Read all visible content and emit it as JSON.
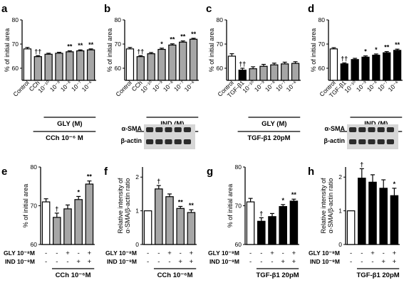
{
  "chart_data": [
    {
      "panel": "a",
      "type": "bar",
      "ylabel": "% of initial area",
      "ylim": [
        55,
        80
      ],
      "yticks": [
        60,
        70,
        80
      ],
      "categories": [
        "Control",
        "CCh",
        "10⁻¹⁰",
        "10⁻⁹",
        "10⁻⁸",
        "10⁻⁷",
        "10⁻⁶"
      ],
      "values": [
        68,
        64.8,
        65.8,
        66.2,
        66.8,
        67.2,
        67.6
      ],
      "errors": [
        0.6,
        0.4,
        0.4,
        0.4,
        0.4,
        0.4,
        0.4
      ],
      "colors": [
        "white",
        "gray",
        "gray",
        "gray",
        "gray",
        "gray",
        "gray"
      ],
      "annotations": [
        "",
        "††",
        "",
        "",
        "**",
        "**",
        "**"
      ],
      "groups": [
        {
          "label": "GLY (M)",
          "from": 2,
          "to": 6
        },
        {
          "label": "CCh 10⁻⁶ M",
          "from": 1,
          "to": 6
        }
      ]
    },
    {
      "panel": "b",
      "type": "bar",
      "ylabel": "% of initial area",
      "ylim": [
        55,
        80
      ],
      "yticks": [
        60,
        70,
        80
      ],
      "categories": [
        "Control",
        "CCh",
        "10⁻¹⁰",
        "10⁻⁹",
        "10⁻⁸",
        "10⁻⁷",
        "10⁻⁶"
      ],
      "values": [
        68,
        64.8,
        66,
        67.8,
        69.6,
        70.8,
        72
      ],
      "errors": [
        0.6,
        0.4,
        0.5,
        0.5,
        0.5,
        0.5,
        0.4
      ],
      "colors": [
        "white",
        "gray",
        "gray",
        "gray",
        "gray",
        "gray",
        "gray"
      ],
      "annotations": [
        "",
        "††",
        "",
        "*",
        "**",
        "**",
        "**"
      ],
      "groups": [
        {
          "label": "IND (M)",
          "from": 2,
          "to": 6
        },
        {
          "label": "CCh 10⁻⁶ M",
          "from": 1,
          "to": 6
        }
      ]
    },
    {
      "panel": "c",
      "type": "bar",
      "ylabel": "% of initial area",
      "ylim": [
        55,
        80
      ],
      "yticks": [
        60,
        70,
        80
      ],
      "categories": [
        "Control",
        "TGF-β1",
        "10⁻¹⁰",
        "10⁻⁹",
        "10⁻⁸",
        "10⁻⁷",
        "10⁻⁶"
      ],
      "values": [
        65,
        59.2,
        59.8,
        60.8,
        61.4,
        61.8,
        62
      ],
      "errors": [
        1.0,
        0.8,
        0.8,
        0.8,
        0.7,
        0.7,
        0.7
      ],
      "colors": [
        "white",
        "black",
        "gray",
        "gray",
        "gray",
        "gray",
        "gray"
      ],
      "annotations": [
        "",
        "††",
        "",
        "",
        "",
        "",
        ""
      ],
      "groups": [
        {
          "label": "GLY (M)",
          "from": 2,
          "to": 6
        },
        {
          "label": "TGF-β1 20pM",
          "from": 1,
          "to": 6
        }
      ]
    },
    {
      "panel": "d",
      "type": "bar",
      "ylabel": "% of initial area",
      "ylim": [
        55,
        80
      ],
      "yticks": [
        60,
        70,
        80
      ],
      "categories": [
        "Control",
        "TGF-β1",
        "10⁻¹⁰",
        "10⁻⁹",
        "10⁻⁸",
        "10⁻⁷",
        "10⁻⁶"
      ],
      "values": [
        68,
        61.8,
        63.6,
        64.6,
        65.4,
        66.4,
        67.4
      ],
      "errors": [
        0.5,
        0.4,
        0.5,
        0.5,
        0.5,
        0.5,
        0.5
      ],
      "colors": [
        "white",
        "black",
        "black",
        "black",
        "black",
        "black",
        "black"
      ],
      "annotations": [
        "",
        "††",
        "",
        "*",
        "*",
        "**",
        "**"
      ],
      "groups": [
        {
          "label": "IND (M)",
          "from": 2,
          "to": 6
        },
        {
          "label": "TGF-β1 20pM",
          "from": 1,
          "to": 6
        }
      ]
    },
    {
      "panel": "e",
      "type": "bar",
      "ylabel": "% of initial area",
      "ylim": [
        60,
        80
      ],
      "yticks": [
        60,
        70,
        80
      ],
      "values": [
        71,
        67,
        69.2,
        71.6,
        75.6
      ],
      "errors": [
        0.8,
        1.1,
        1.0,
        0.8,
        0.8
      ],
      "colors": [
        "white",
        "gray",
        "gray",
        "gray",
        "gray"
      ],
      "annotations": [
        "",
        "†",
        "",
        "*",
        "**"
      ],
      "rows": [
        {
          "label": "GLY 10⁻⁸M",
          "signs": [
            "-",
            "-",
            "+",
            "-",
            "+"
          ]
        },
        {
          "label": "IND 10⁻⁹M",
          "signs": [
            "-",
            "-",
            "-",
            "+",
            "+"
          ]
        }
      ],
      "groups": [
        {
          "label": "CCh 10⁻⁶M",
          "from": 1,
          "to": 4
        }
      ]
    },
    {
      "panel": "f",
      "type": "bar",
      "ylabel": [
        "Relative intensity of",
        "α-SMA/β-actin ratio"
      ],
      "ylim": [
        0,
        2.3
      ],
      "yticks": [
        0,
        1,
        2
      ],
      "values": [
        1.0,
        1.65,
        1.42,
        1.07,
        0.95
      ],
      "errors": [
        0,
        0.1,
        0.08,
        0.06,
        0.08
      ],
      "colors": [
        "white",
        "gray",
        "gray",
        "gray",
        "gray"
      ],
      "annotations": [
        "",
        "†",
        "",
        "**",
        "**"
      ],
      "rows": [
        {
          "label": "GLY 10⁻⁸M",
          "signs": [
            "-",
            "-",
            "+",
            "-",
            "+"
          ]
        },
        {
          "label": "IND 10⁻⁹M",
          "signs": [
            "-",
            "-",
            "-",
            "+",
            "+"
          ]
        }
      ],
      "groups": [
        {
          "label": "CCh 10⁻⁶M",
          "from": 1,
          "to": 4
        }
      ],
      "blot_labels": [
        "α-SMA",
        "β-actin"
      ]
    },
    {
      "panel": "g",
      "type": "bar",
      "ylabel": "% of initial area",
      "ylim": [
        60,
        80
      ],
      "yticks": [
        60,
        70,
        80
      ],
      "values": [
        71,
        66,
        67.2,
        69.8,
        71.2
      ],
      "errors": [
        0.9,
        0.9,
        0.8,
        0.5,
        0.5
      ],
      "colors": [
        "white",
        "black",
        "black",
        "black",
        "black"
      ],
      "annotations": [
        "",
        "†",
        "",
        "*",
        "**"
      ],
      "rows": [
        {
          "label": "GLY 10⁻⁸M",
          "signs": [
            "-",
            "-",
            "+",
            "-",
            "+"
          ]
        },
        {
          "label": "IND 10⁻⁹M",
          "signs": [
            "-",
            "-",
            "-",
            "+",
            "+"
          ]
        }
      ],
      "groups": [
        {
          "label": "TGF-β1 20pM",
          "from": 1,
          "to": 4
        }
      ]
    },
    {
      "panel": "h",
      "type": "bar",
      "ylabel": [
        "Relative intensity of",
        "α-SMA/β-actin ratio"
      ],
      "ylim": [
        0,
        2.3
      ],
      "yticks": [
        0,
        1,
        2
      ],
      "values": [
        1.0,
        1.97,
        1.85,
        1.67,
        1.45
      ],
      "errors": [
        0,
        0.28,
        0.22,
        0.25,
        0.22
      ],
      "colors": [
        "white",
        "black",
        "black",
        "black",
        "black"
      ],
      "annotations": [
        "",
        "†",
        "",
        "",
        "*"
      ],
      "rows": [
        {
          "label": "GLY 10⁻⁸M",
          "signs": [
            "-",
            "-",
            "+",
            "-",
            "+"
          ]
        },
        {
          "label": "IND 10⁻⁹M",
          "signs": [
            "-",
            "-",
            "-",
            "+",
            "+"
          ]
        }
      ],
      "groups": [
        {
          "label": "TGF-β1 20pM",
          "from": 1,
          "to": 4
        }
      ],
      "blot_labels": [
        "α-SMA",
        "β-actin"
      ]
    }
  ]
}
